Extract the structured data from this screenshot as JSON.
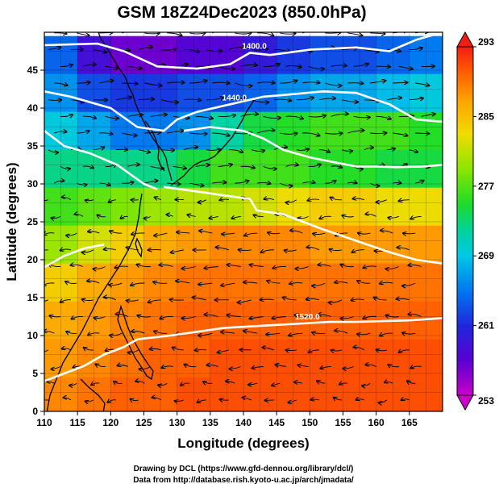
{
  "figure": {
    "title": "GSM 18Z24Dec2023 (850.0hPa)",
    "xlabel": "Longitude (degrees)",
    "ylabel": "Latitude  (degrees)",
    "credit_line1": "Drawing by DCL (https://www.gfd-dennou.org/library/dcl/)",
    "credit_line2": "Data from http://database.rish.kyoto-u.ac.jp/arch/jmadata/"
  },
  "chart_data": {
    "type": "heatmap",
    "title": "GSM 18Z24Dec2023 (850.0hPa)",
    "xlabel": "Longitude (degrees)",
    "ylabel": "Latitude  (degrees)",
    "xlim": [
      110,
      170
    ],
    "ylim": [
      0,
      50
    ],
    "x_ticks": [
      110,
      115,
      120,
      125,
      130,
      135,
      140,
      145,
      150,
      155,
      160,
      165
    ],
    "y_ticks": [
      0,
      5,
      10,
      15,
      20,
      25,
      30,
      35,
      40,
      45
    ],
    "grid": true,
    "colorbar": {
      "placement": "right",
      "range": [
        253,
        293
      ],
      "ticks": [
        253,
        261,
        269,
        277,
        285,
        293
      ],
      "colors": [
        "#c800c8",
        "#5a00d2",
        "#1e28dc",
        "#0078f0",
        "#00c8e6",
        "#00d2a0",
        "#1edc28",
        "#8ce600",
        "#f0dc00",
        "#ffa000",
        "#ff5a00",
        "#f01e14"
      ]
    },
    "shaded_field_samples": [
      {
        "lat": 47,
        "values": [
          263,
          258,
          256,
          256,
          257,
          257,
          259,
          261,
          262,
          262,
          263,
          264
        ]
      },
      {
        "lat": 42,
        "values": [
          265,
          262,
          261,
          261,
          262,
          262,
          263,
          265,
          266,
          266,
          267,
          268
        ]
      },
      {
        "lat": 37,
        "values": [
          268,
          266,
          264,
          264,
          265,
          271,
          274,
          275,
          276,
          276,
          276,
          275
        ]
      },
      {
        "lat": 32,
        "values": [
          272,
          272,
          272,
          272,
          274,
          276,
          276,
          276,
          275,
          275,
          274,
          274
        ]
      },
      {
        "lat": 27,
        "values": [
          276,
          277,
          278,
          279,
          280,
          280,
          281,
          282,
          283,
          283,
          282,
          282
        ]
      },
      {
        "lat": 22,
        "values": [
          279,
          281,
          283,
          285,
          286,
          287,
          287,
          287,
          286,
          286,
          286,
          286
        ]
      },
      {
        "lat": 17,
        "values": [
          283,
          285,
          286,
          287,
          288,
          288,
          288,
          288,
          288,
          288,
          288,
          288
        ]
      },
      {
        "lat": 12,
        "values": [
          285,
          286,
          287,
          288,
          289,
          289,
          289,
          289,
          289,
          289,
          289,
          289
        ]
      },
      {
        "lat": 7,
        "values": [
          286,
          287,
          288,
          289,
          289,
          290,
          290,
          290,
          290,
          290,
          290,
          290
        ]
      },
      {
        "lat": 2,
        "values": [
          287,
          288,
          289,
          289,
          290,
          290,
          290,
          290,
          290,
          290,
          290,
          290
        ]
      }
    ],
    "contours": [
      {
        "label": "1400.0",
        "points": [
          [
            110,
            48.3
          ],
          [
            118,
            48.5
          ],
          [
            122,
            47.5
          ],
          [
            127,
            45.5
          ],
          [
            133,
            45.2
          ],
          [
            138,
            45.8
          ],
          [
            141,
            47.3
          ],
          [
            144,
            47.0
          ],
          [
            150,
            47.7
          ],
          [
            157,
            48.0
          ],
          [
            162,
            47.5
          ],
          [
            166,
            49.0
          ],
          [
            170,
            50.0
          ]
        ]
      },
      {
        "label": "1440.0",
        "points": [
          [
            110,
            42.2
          ],
          [
            114,
            41.5
          ],
          [
            120,
            40.0
          ],
          [
            124,
            37.5
          ],
          [
            128,
            37.0
          ],
          [
            130,
            38.5
          ],
          [
            133,
            39.5
          ],
          [
            138,
            40.5
          ],
          [
            143,
            41.5
          ],
          [
            147,
            41.8
          ],
          [
            152,
            42.2
          ],
          [
            157,
            42.0
          ],
          [
            162,
            40.5
          ],
          [
            166,
            38.5
          ],
          [
            170,
            38.2
          ]
        ]
      },
      {
        "label": "",
        "points": [
          [
            110,
            37.0
          ],
          [
            113,
            35.0
          ],
          [
            117,
            34.0
          ],
          [
            121,
            32.5
          ],
          [
            125,
            30.0
          ],
          [
            127,
            29.3
          ]
        ]
      },
      {
        "label": "",
        "points": [
          [
            131,
            37.0
          ],
          [
            135,
            37.5
          ],
          [
            140,
            37.0
          ],
          [
            143,
            36.0
          ],
          [
            146,
            34.5
          ],
          [
            150,
            33.5
          ],
          [
            154,
            32.8
          ],
          [
            157,
            32.3
          ],
          [
            160,
            32.3
          ],
          [
            163,
            32.2
          ],
          [
            167,
            32.3
          ],
          [
            170,
            32.5
          ]
        ]
      },
      {
        "label": "",
        "points": [
          [
            128,
            29.6
          ],
          [
            133,
            29.0
          ],
          [
            137,
            28.5
          ],
          [
            141,
            28.0
          ],
          [
            142,
            26.5
          ],
          [
            146,
            26.0
          ],
          [
            152,
            24.0
          ],
          [
            157,
            22.5
          ],
          [
            162,
            21.0
          ],
          [
            166,
            20.0
          ],
          [
            170,
            19.5
          ]
        ]
      },
      {
        "label": "",
        "points": [
          [
            110,
            19.0
          ],
          [
            113,
            20.5
          ],
          [
            116,
            21.5
          ],
          [
            119,
            22.0
          ]
        ]
      },
      {
        "label": "1520.0",
        "points": [
          [
            124,
            9.5
          ],
          [
            129,
            10.0
          ],
          [
            133,
            10.5
          ],
          [
            137,
            11.0
          ],
          [
            141,
            11.2
          ],
          [
            145,
            11.4
          ],
          [
            149,
            11.6
          ],
          [
            153,
            11.8
          ],
          [
            157,
            11.8
          ],
          [
            161,
            11.9
          ],
          [
            165,
            12.0
          ],
          [
            170,
            12.3
          ]
        ]
      },
      {
        "label": "",
        "points": [
          [
            110,
            4.0
          ],
          [
            113,
            5.0
          ],
          [
            116,
            6.0
          ],
          [
            119,
            7.5
          ],
          [
            122,
            8.5
          ],
          [
            124,
            9.5
          ]
        ]
      }
    ],
    "wind_field_samples": [
      {
        "lat": 47.5,
        "u": [
          8,
          9,
          10,
          11,
          12,
          13,
          13,
          12,
          12,
          11,
          10,
          9
        ]
      },
      {
        "lat": 42.5,
        "u": [
          9,
          10,
          12,
          14,
          16,
          16,
          15,
          14,
          13,
          12,
          11,
          10
        ]
      },
      {
        "lat": 37.5,
        "u": [
          8,
          9,
          11,
          13,
          15,
          16,
          16,
          15,
          14,
          13,
          11,
          10
        ]
      },
      {
        "lat": 32.5,
        "u": [
          5,
          6,
          7,
          9,
          10,
          10,
          9,
          8,
          6,
          4,
          3,
          3
        ]
      },
      {
        "lat": 27.5,
        "u": [
          -4,
          -3,
          -2,
          -1,
          -3,
          -4,
          -5,
          -6,
          -7,
          -7,
          -6,
          -6
        ]
      },
      {
        "lat": 22.5,
        "u": [
          -6,
          -7,
          -8,
          -9,
          -9,
          -9,
          -9,
          -8,
          -8,
          -8,
          -8,
          -8
        ]
      },
      {
        "lat": 17.5,
        "u": [
          -7,
          -8,
          -9,
          -10,
          -10,
          -10,
          -10,
          -9,
          -9,
          -9,
          -9,
          -9
        ]
      },
      {
        "lat": 12.5,
        "u": [
          -6,
          -7,
          -8,
          -9,
          -10,
          -10,
          -10,
          -10,
          -9,
          -9,
          -9,
          -9
        ]
      },
      {
        "lat": 7.5,
        "u": [
          -4,
          -5,
          -6,
          -7,
          -7,
          -7,
          -7,
          -6,
          -6,
          -6,
          -6,
          -6
        ]
      },
      {
        "lat": 2.5,
        "u": [
          -2,
          -3,
          -3,
          -4,
          -4,
          -4,
          -4,
          -3,
          -3,
          -3,
          -3,
          -3
        ]
      }
    ]
  }
}
